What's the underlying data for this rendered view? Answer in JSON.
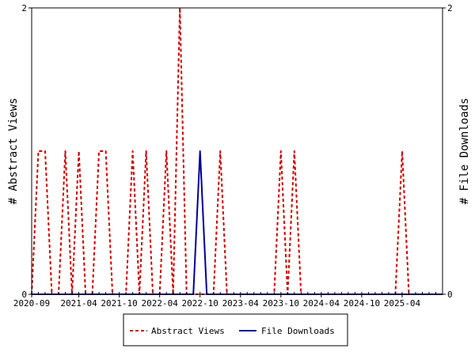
{
  "chart_data": {
    "type": "line",
    "title": "",
    "ylabel_left": "# Abstract Views",
    "ylabel_right": "# File Downloads",
    "ylim_left": [
      0,
      2
    ],
    "ylim_right": [
      0,
      2
    ],
    "yticks_left": [
      0,
      2
    ],
    "yticks_right": [
      0,
      2
    ],
    "xlim": [
      "2020-09",
      "2025-10"
    ],
    "x_tick_labels": [
      "2020-09",
      "2021-04",
      "2021-10",
      "2022-04",
      "2022-10",
      "2023-04",
      "2023-10",
      "2024-04",
      "2024-10",
      "2025-04"
    ],
    "grid": false,
    "legend_position": "bottom",
    "x": [
      "2020-09",
      "2020-10",
      "2020-11",
      "2020-12",
      "2021-01",
      "2021-02",
      "2021-03",
      "2021-04",
      "2021-05",
      "2021-06",
      "2021-07",
      "2021-08",
      "2021-09",
      "2021-10",
      "2021-11",
      "2021-12",
      "2022-01",
      "2022-02",
      "2022-03",
      "2022-04",
      "2022-05",
      "2022-06",
      "2022-07",
      "2022-08",
      "2022-09",
      "2022-10",
      "2022-11",
      "2022-12",
      "2023-01",
      "2023-02",
      "2023-03",
      "2023-04",
      "2023-05",
      "2023-06",
      "2023-07",
      "2023-08",
      "2023-09",
      "2023-10",
      "2023-11",
      "2023-12",
      "2024-01",
      "2024-02",
      "2024-03",
      "2024-04",
      "2024-05",
      "2024-06",
      "2024-07",
      "2024-08",
      "2024-09",
      "2024-10",
      "2024-11",
      "2024-12",
      "2025-01",
      "2025-02",
      "2025-03",
      "2025-04",
      "2025-05",
      "2025-06",
      "2025-07",
      "2025-08",
      "2025-09",
      "2025-10"
    ],
    "series": [
      {
        "name": "Abstract Views",
        "axis": "left",
        "color": "#cc0000",
        "dash": "dashed",
        "values": [
          0,
          1,
          1,
          0,
          0,
          1,
          0,
          1,
          0,
          0,
          1,
          1,
          0,
          0,
          0,
          1,
          0,
          1,
          0,
          0,
          1,
          0,
          2,
          0,
          0,
          0,
          0,
          0,
          1,
          0,
          0,
          0,
          0,
          0,
          0,
          0,
          0,
          1,
          0,
          1,
          0,
          0,
          0,
          0,
          0,
          0,
          0,
          0,
          0,
          0,
          0,
          0,
          0,
          0,
          0,
          1,
          0,
          0,
          0,
          0,
          0,
          0
        ]
      },
      {
        "name": "File Downloads",
        "axis": "right",
        "color": "#000099",
        "dash": "solid",
        "values": [
          0,
          0,
          0,
          0,
          0,
          0,
          0,
          0,
          0,
          0,
          0,
          0,
          0,
          0,
          0,
          0,
          0,
          0,
          0,
          0,
          0,
          0,
          0,
          0,
          0,
          1,
          0,
          0,
          0,
          0,
          0,
          0,
          0,
          0,
          0,
          0,
          0,
          0,
          0,
          0,
          0,
          0,
          0,
          0,
          0,
          0,
          0,
          0,
          0,
          0,
          0,
          0,
          0,
          0,
          0,
          0,
          0,
          0,
          0,
          0,
          0,
          0
        ]
      }
    ]
  }
}
